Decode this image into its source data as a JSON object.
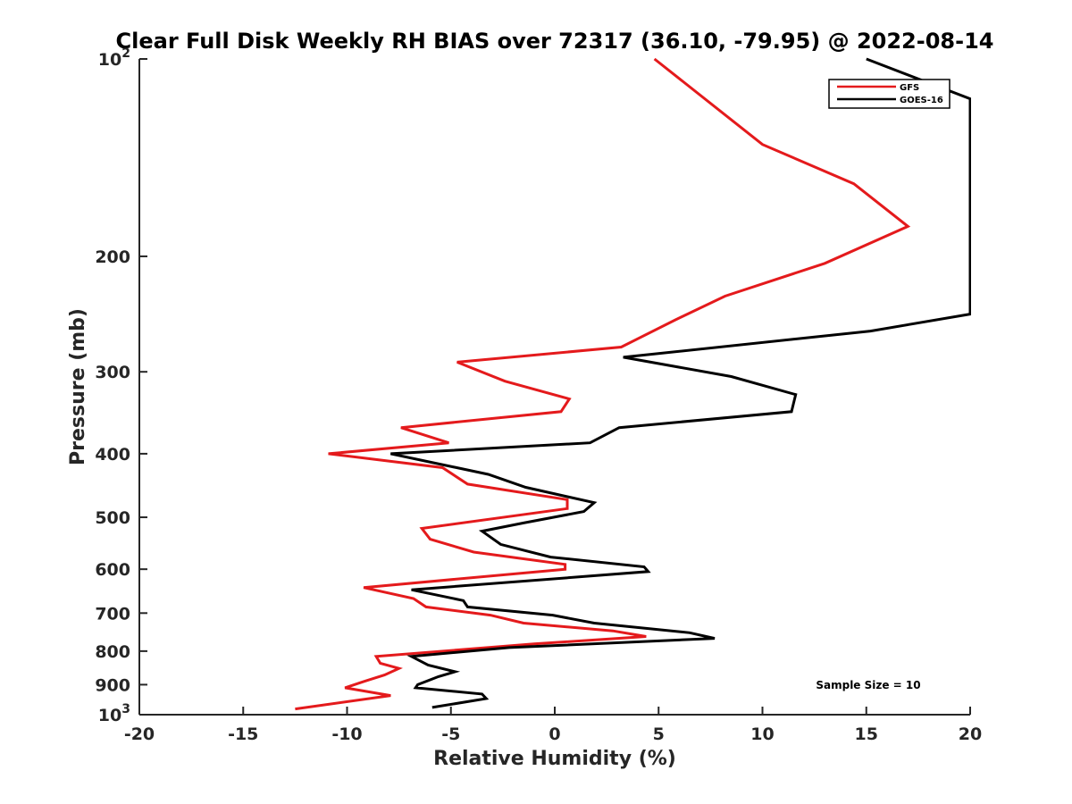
{
  "chart_data": {
    "type": "line",
    "title": "Clear Full Disk Weekly RH BIAS over 72317 (36.10, -79.95) @ 2022-08-14",
    "xlabel": "Relative Humidity (%)",
    "ylabel": "Pressure (mb)",
    "xlim": [
      -20,
      20
    ],
    "ylim": [
      1000,
      100
    ],
    "yscale": "log",
    "y_reversed": true,
    "x_ticks": [
      -20,
      -15,
      -10,
      -5,
      0,
      5,
      10,
      15,
      20
    ],
    "y_ticks": [
      {
        "value": 100,
        "label_base": "10",
        "label_exp": "2"
      },
      {
        "value": 200,
        "label": "200"
      },
      {
        "value": 300,
        "label": "300"
      },
      {
        "value": 400,
        "label": "400"
      },
      {
        "value": 500,
        "label": "500"
      },
      {
        "value": 600,
        "label": "600"
      },
      {
        "value": 700,
        "label": "700"
      },
      {
        "value": 800,
        "label": "800"
      },
      {
        "value": 900,
        "label": "900"
      },
      {
        "value": 1000,
        "label_base": "10",
        "label_exp": "3"
      }
    ],
    "legend_position": "top-right",
    "grid": false,
    "annotation": "Sample Size = 10",
    "series": [
      {
        "name": "GFS",
        "color": "#e41a1c",
        "points": [
          [
            4.8,
            100
          ],
          [
            10.0,
            135
          ],
          [
            14.4,
            155
          ],
          [
            17.0,
            180
          ],
          [
            13.0,
            205
          ],
          [
            8.2,
            230
          ],
          [
            5.8,
            250
          ],
          [
            3.2,
            275
          ],
          [
            -4.7,
            290
          ],
          [
            -2.4,
            310
          ],
          [
            0.7,
            330
          ],
          [
            0.3,
            345
          ],
          [
            -7.4,
            365
          ],
          [
            -5.1,
            385
          ],
          [
            -10.9,
            400
          ],
          [
            -5.4,
            420
          ],
          [
            -4.2,
            445
          ],
          [
            0.6,
            470
          ],
          [
            0.6,
            485
          ],
          [
            -6.4,
            520
          ],
          [
            -6.0,
            540
          ],
          [
            -3.9,
            565
          ],
          [
            0.5,
            590
          ],
          [
            0.5,
            600
          ],
          [
            -9.2,
            640
          ],
          [
            -6.8,
            665
          ],
          [
            -6.2,
            685
          ],
          [
            -3.1,
            705
          ],
          [
            -1.5,
            725
          ],
          [
            2.8,
            745
          ],
          [
            4.4,
            760
          ],
          [
            -1.0,
            780
          ],
          [
            -8.6,
            815
          ],
          [
            -8.4,
            835
          ],
          [
            -7.5,
            850
          ],
          [
            -8.2,
            870
          ],
          [
            -9.2,
            890
          ],
          [
            -10.1,
            910
          ],
          [
            -7.9,
            935
          ],
          [
            -12.5,
            980
          ]
        ]
      },
      {
        "name": "GOES-16",
        "color": "#000000",
        "points": [
          [
            15.0,
            100
          ],
          [
            20.0,
            115
          ],
          [
            20.0,
            245
          ],
          [
            15.2,
            260
          ],
          [
            3.3,
            285
          ],
          [
            8.5,
            305
          ],
          [
            11.6,
            325
          ],
          [
            11.4,
            345
          ],
          [
            3.1,
            365
          ],
          [
            1.7,
            385
          ],
          [
            -7.9,
            400
          ],
          [
            -3.2,
            430
          ],
          [
            -1.4,
            450
          ],
          [
            1.9,
            475
          ],
          [
            1.4,
            490
          ],
          [
            -1.5,
            510
          ],
          [
            -3.5,
            525
          ],
          [
            -2.6,
            550
          ],
          [
            -0.2,
            575
          ],
          [
            4.3,
            595
          ],
          [
            4.5,
            605
          ],
          [
            -6.9,
            645
          ],
          [
            -4.4,
            670
          ],
          [
            -4.2,
            685
          ],
          [
            -0.1,
            705
          ],
          [
            1.9,
            725
          ],
          [
            6.5,
            750
          ],
          [
            7.7,
            765
          ],
          [
            -2.2,
            790
          ],
          [
            -6.9,
            815
          ],
          [
            -6.1,
            840
          ],
          [
            -4.8,
            860
          ],
          [
            -5.6,
            875
          ],
          [
            -6.6,
            900
          ],
          [
            -6.7,
            910
          ],
          [
            -3.5,
            930
          ],
          [
            -3.3,
            945
          ],
          [
            -5.9,
            975
          ]
        ]
      }
    ]
  }
}
